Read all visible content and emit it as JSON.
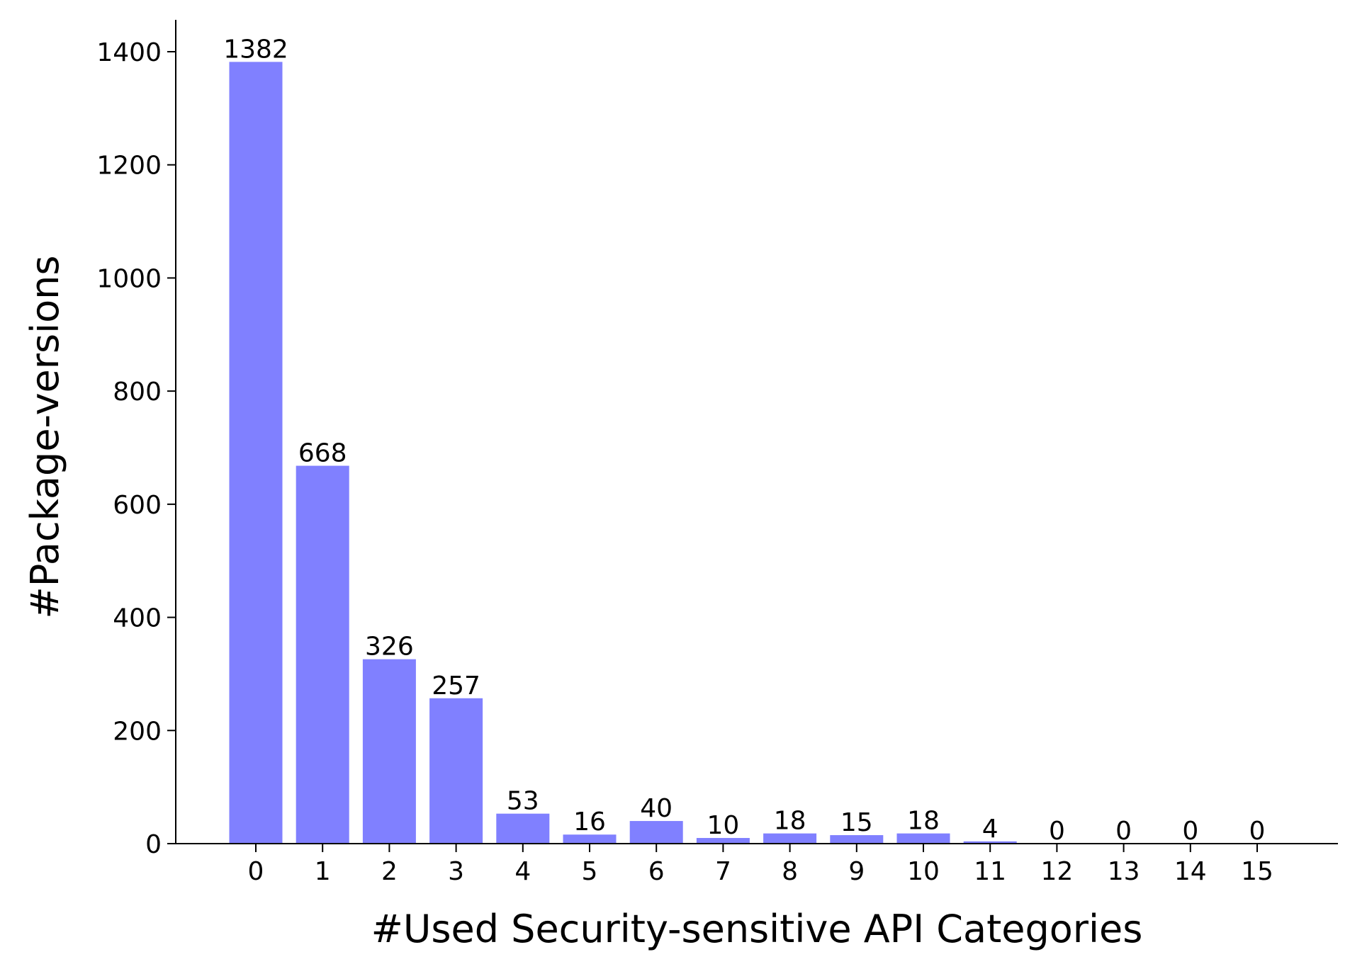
{
  "chart_data": {
    "type": "bar",
    "title": "",
    "xlabel": "#Used Security-sensitive API Categories",
    "ylabel": "#Package-versions",
    "categories": [
      "0",
      "1",
      "2",
      "3",
      "4",
      "5",
      "6",
      "7",
      "8",
      "9",
      "10",
      "11",
      "12",
      "13",
      "14",
      "15"
    ],
    "values": [
      1382,
      668,
      326,
      257,
      53,
      16,
      40,
      10,
      18,
      15,
      18,
      4,
      0,
      0,
      0,
      0
    ],
    "data_labels": [
      "1382",
      "668",
      "326",
      "257",
      "53",
      "16",
      "40",
      "10",
      "18",
      "15",
      "18",
      "4",
      "0",
      "0",
      "0",
      "0"
    ],
    "yticks": [
      0,
      200,
      400,
      600,
      800,
      1000,
      1200,
      1400
    ],
    "ylim": [
      0,
      1450
    ],
    "xlim": [
      -1.2,
      16.2
    ],
    "grid": false,
    "legend": "none",
    "bar_color": "#8080ff"
  }
}
